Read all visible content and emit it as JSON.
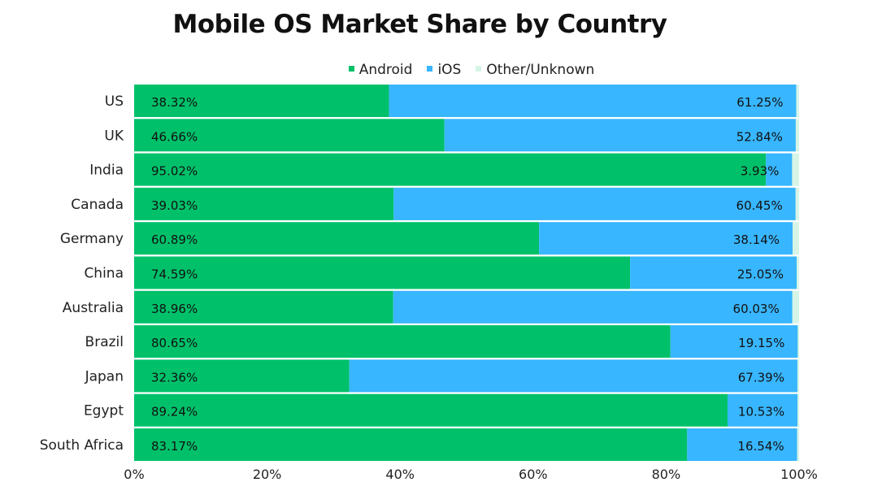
{
  "chart_data": {
    "type": "bar",
    "orientation": "horizontal",
    "stacked": true,
    "title": "Mobile OS Market Share by Country",
    "categories": [
      "US",
      "UK",
      "India",
      "Canada",
      "Germany",
      "China",
      "Australia",
      "Brazil",
      "Japan",
      "Egypt",
      "South Africa"
    ],
    "series": [
      {
        "name": "Android",
        "color": "#00c16a",
        "values": [
          38.32,
          46.66,
          95.02,
          39.03,
          60.89,
          74.59,
          38.96,
          80.65,
          32.36,
          89.24,
          83.17
        ],
        "labels": [
          "38.32%",
          "46.66%",
          "95.02%",
          "39.03%",
          "60.89%",
          "74.59%",
          "38.96%",
          "80.65%",
          "32.36%",
          "89.24%",
          "83.17%"
        ]
      },
      {
        "name": "iOS",
        "color": "#38b6ff",
        "values": [
          61.25,
          52.84,
          3.93,
          60.45,
          38.14,
          25.05,
          60.03,
          19.15,
          67.39,
          10.53,
          16.54
        ],
        "labels": [
          "61.25%",
          "52.84%",
          "3.93%",
          "60.45%",
          "38.14%",
          "25.05%",
          "60.03%",
          "19.15%",
          "67.39%",
          "10.53%",
          "16.54%"
        ]
      },
      {
        "name": "Other/Unknown",
        "color": "#d6f5e6",
        "values": [
          0.43,
          0.5,
          1.05,
          0.52,
          0.97,
          0.36,
          1.01,
          0.2,
          0.25,
          0.23,
          0.29
        ]
      }
    ],
    "xlim": [
      0,
      100
    ],
    "x_ticks": [
      "0%",
      "20%",
      "40%",
      "60%",
      "80%",
      "100%"
    ],
    "legend_position": "top-center",
    "grid": false
  }
}
